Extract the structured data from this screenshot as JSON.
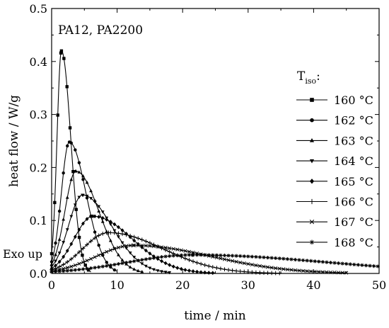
{
  "chart_data": {
    "type": "line",
    "title": "",
    "annotations": [
      "PA12, PA2200",
      "Exo up"
    ],
    "xlabel": "time / min",
    "ylabel": "heat flow / W/g",
    "xlim": [
      0,
      50
    ],
    "ylim": [
      0,
      0.5
    ],
    "xticks": [
      "0",
      "10",
      "20",
      "30",
      "40",
      "50"
    ],
    "yticks": [
      "0.0",
      "0.1",
      "0.2",
      "0.3",
      "0.4",
      "0.5"
    ],
    "grid": false,
    "legend_title": {
      "main": "T",
      "sub": "iso",
      "suffix": ":"
    },
    "legend_position": "right",
    "series": [
      {
        "name": "160 °C",
        "marker": "square",
        "peak_x": 1.5,
        "peak_y": 0.42,
        "end_x": 6
      },
      {
        "name": "162 °C",
        "marker": "circle",
        "peak_x": 2.7,
        "peak_y": 0.248,
        "end_x": 10
      },
      {
        "name": "163 °C",
        "marker": "triangle-up",
        "peak_x": 3.7,
        "peak_y": 0.193,
        "end_x": 14
      },
      {
        "name": "164 °C",
        "marker": "triangle-down",
        "peak_x": 4.7,
        "peak_y": 0.148,
        "end_x": 18
      },
      {
        "name": "165 °C",
        "marker": "diamond",
        "peak_x": 6.3,
        "peak_y": 0.108,
        "end_x": 25
      },
      {
        "name": "166 °C",
        "marker": "plus",
        "peak_x": 8.7,
        "peak_y": 0.077,
        "end_x": 35
      },
      {
        "name": "167 °C",
        "marker": "cross",
        "peak_x": 12.5,
        "peak_y": 0.053,
        "end_x": 45
      },
      {
        "name": "168 °C",
        "marker": "star",
        "peak_x": 21.5,
        "peak_y": 0.035,
        "end_x": 50
      }
    ]
  }
}
